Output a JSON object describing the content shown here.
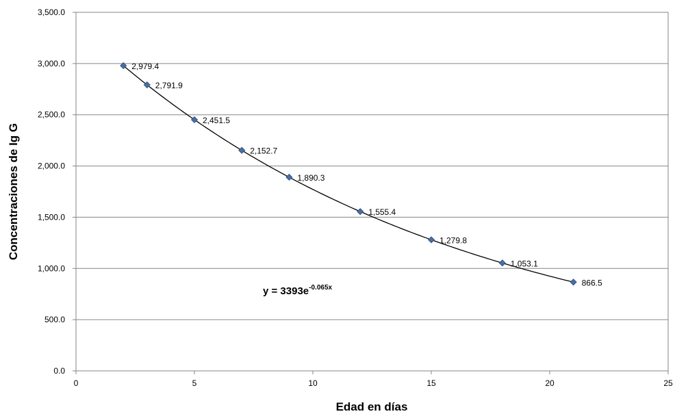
{
  "chart_data": {
    "type": "scatter",
    "title": "",
    "xlabel": "Edad en días",
    "ylabel": "Concentraciones de Ig G",
    "xlim": [
      0,
      25
    ],
    "ylim": [
      0,
      3500
    ],
    "x_ticks": [
      "0",
      "5",
      "10",
      "15",
      "20",
      "25"
    ],
    "y_ticks": [
      "0.0",
      "500.0",
      "1,000.0",
      "1,500.0",
      "2,000.0",
      "2,500.0",
      "3,000.0",
      "3,500.0"
    ],
    "grid": "horizontal",
    "marker_color": "#4a6fa5",
    "trendline": {
      "type": "exponential",
      "a": 3393,
      "b": -0.065,
      "equation_base": "y = 3393e",
      "equation_exponent": "-0.065x"
    },
    "series": [
      {
        "x": [
          2,
          3,
          5,
          7,
          9,
          12,
          15,
          18,
          21
        ],
        "y": [
          2979.4,
          2791.9,
          2451.5,
          2152.7,
          1890.3,
          1555.4,
          1279.8,
          1053.1,
          866.5
        ],
        "labels": [
          "2,979.4",
          "2,791.9",
          "2,451.5",
          "2,152.7",
          "1,890.3",
          "1,555.4",
          "1,279.8",
          "1,053.1",
          "866.5"
        ]
      }
    ]
  }
}
